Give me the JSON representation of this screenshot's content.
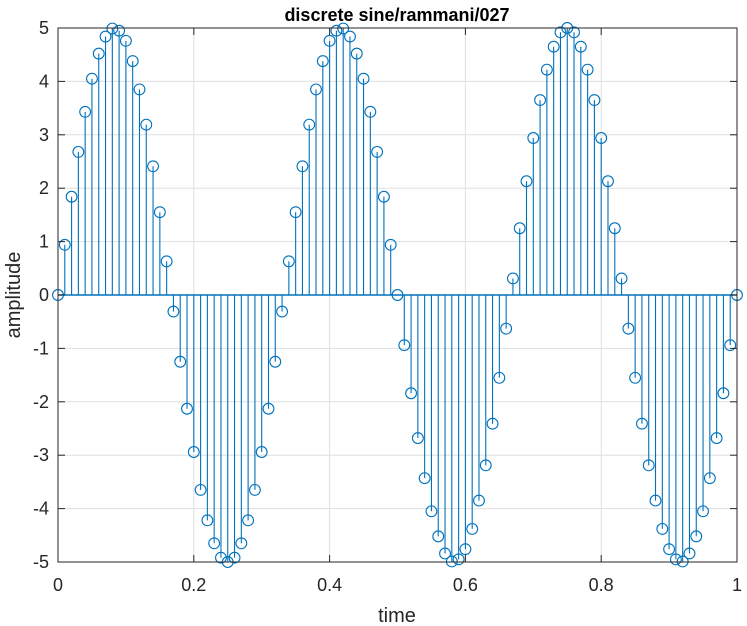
{
  "chart_data": {
    "type": "stem",
    "title": "discrete sine/rammani/027",
    "xlabel": "time",
    "ylabel": "amplitude",
    "xlim": [
      0,
      1
    ],
    "ylim": [
      -5,
      5
    ],
    "xticks": [
      "0",
      "0.2",
      "0.4",
      "0.6",
      "0.8",
      "1"
    ],
    "yticks": [
      "5",
      "4",
      "3",
      "2",
      "1",
      "0",
      "-1",
      "-2",
      "-3",
      "-4",
      "-5"
    ],
    "grid": true,
    "series": [
      {
        "color": "#0072bd",
        "x": [
          0,
          0.01,
          0.02,
          0.03,
          0.04,
          0.05,
          0.06,
          0.07,
          0.08,
          0.09,
          0.1,
          0.11,
          0.12,
          0.13,
          0.14,
          0.15,
          0.16,
          0.17,
          0.18,
          0.19,
          0.2,
          0.21,
          0.22,
          0.23,
          0.24,
          0.25,
          0.26,
          0.27,
          0.28,
          0.29,
          0.3,
          0.31,
          0.32,
          0.33,
          0.34,
          0.35,
          0.36,
          0.37,
          0.38,
          0.39,
          0.4,
          0.41,
          0.42,
          0.43,
          0.44,
          0.45,
          0.46,
          0.47,
          0.48,
          0.49,
          0.5,
          0.51,
          0.52,
          0.53,
          0.54,
          0.55,
          0.56,
          0.57,
          0.58,
          0.59,
          0.6,
          0.61,
          0.62,
          0.63,
          0.64,
          0.65,
          0.66,
          0.67,
          0.68,
          0.69,
          0.7,
          0.71,
          0.72,
          0.73,
          0.74,
          0.75,
          0.76,
          0.77,
          0.78,
          0.79,
          0.8,
          0.81,
          0.82,
          0.83,
          0.84,
          0.85,
          0.86,
          0.87,
          0.88,
          0.89,
          0.9,
          0.91,
          0.92,
          0.93,
          0.94,
          0.95,
          0.96,
          0.97,
          0.98,
          0.99,
          1
        ],
        "values": [
          0,
          0.94,
          1.84,
          2.68,
          3.43,
          4.05,
          4.52,
          4.84,
          4.99,
          4.95,
          4.76,
          4.38,
          3.85,
          3.19,
          2.41,
          1.55,
          0.63,
          -0.31,
          -1.25,
          -2.13,
          -2.94,
          -3.65,
          -4.22,
          -4.65,
          -4.92,
          -5.0,
          -4.92,
          -4.65,
          -4.22,
          -3.65,
          -2.94,
          -2.13,
          -1.25,
          -0.31,
          0.63,
          1.55,
          2.41,
          3.19,
          3.85,
          4.38,
          4.76,
          4.95,
          4.99,
          4.84,
          4.52,
          4.05,
          3.43,
          2.68,
          1.84,
          0.94,
          0,
          -0.94,
          -1.84,
          -2.68,
          -3.43,
          -4.05,
          -4.52,
          -4.84,
          -4.99,
          -4.95,
          -4.76,
          -4.38,
          -3.85,
          -3.19,
          -2.41,
          -1.55,
          -0.63,
          0.31,
          1.25,
          2.13,
          2.94,
          3.65,
          4.22,
          4.65,
          4.92,
          5.0,
          4.92,
          4.65,
          4.22,
          3.65,
          2.94,
          2.13,
          1.25,
          0.31,
          -0.63,
          -1.55,
          -2.41,
          -3.19,
          -3.85,
          -4.38,
          -4.76,
          -4.95,
          -4.99,
          -4.84,
          -4.52,
          -4.05,
          -3.43,
          -2.68,
          -1.84,
          -0.94,
          0
        ]
      }
    ],
    "colors": {
      "series": "#0072bd",
      "grid": "#dfdfdf",
      "axis": "#262626",
      "title": "#000000"
    }
  }
}
